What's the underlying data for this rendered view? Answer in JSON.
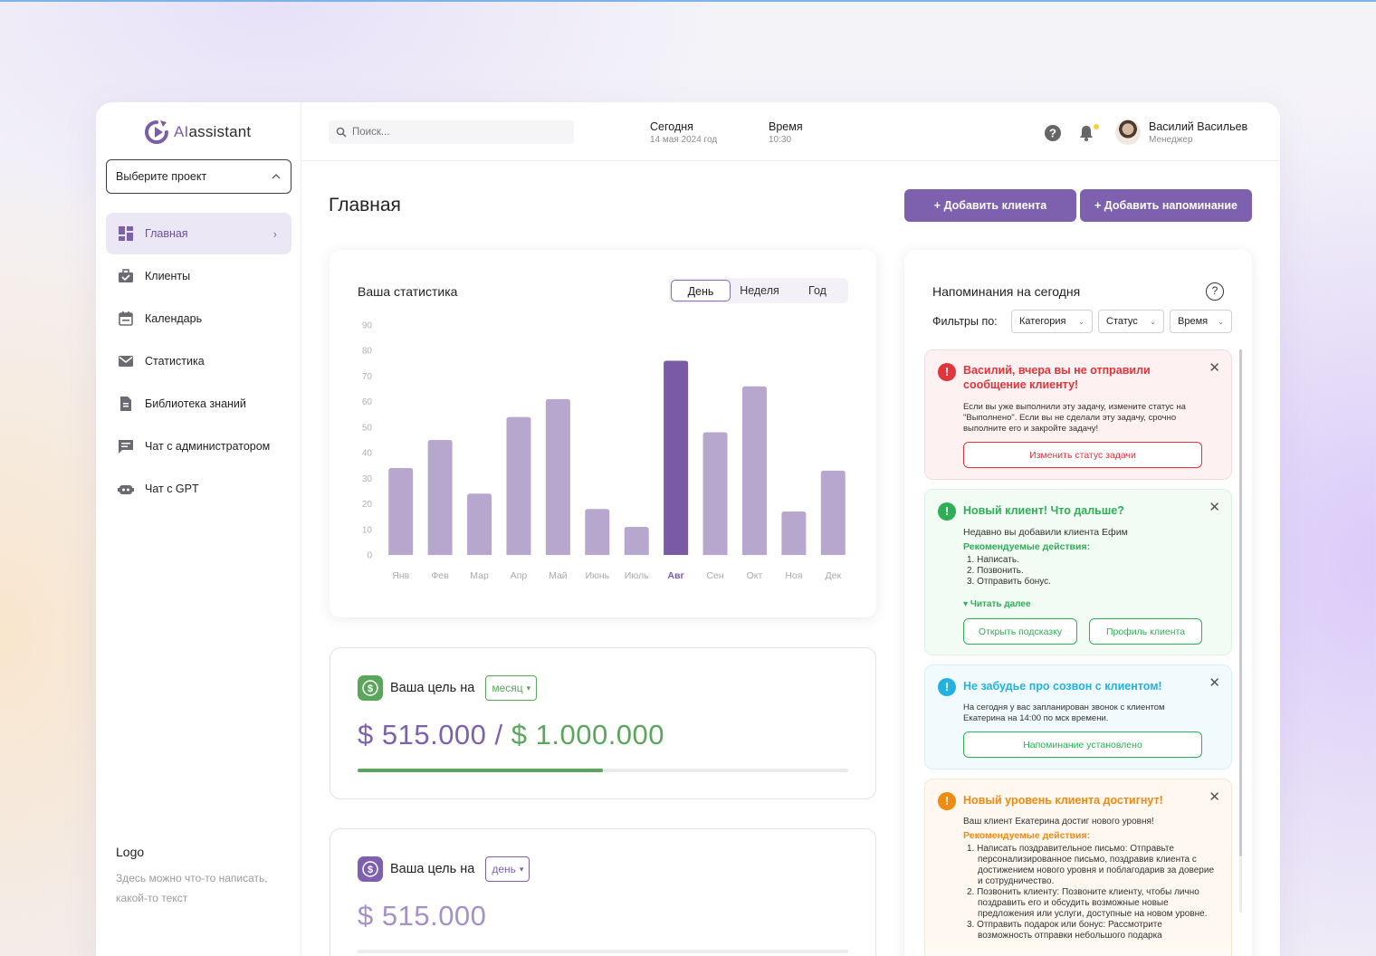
{
  "brand": {
    "name_prefix": "AI",
    "name_suffix": "assistant"
  },
  "project_select": {
    "label": "Выберите проект"
  },
  "sidebar": {
    "items": [
      {
        "label": "Главная",
        "icon": "dashboard-icon",
        "active": true
      },
      {
        "label": "Клиенты",
        "icon": "briefcase-icon"
      },
      {
        "label": "Календарь",
        "icon": "calendar-icon"
      },
      {
        "label": "Статистика",
        "icon": "mail-icon"
      },
      {
        "label": "Библиотека знаний",
        "icon": "document-icon"
      },
      {
        "label": "Чат с администратором",
        "icon": "chat-icon"
      },
      {
        "label": "Чат с GPT",
        "icon": "robot-icon"
      }
    ],
    "footer": {
      "title": "Logo",
      "text": "Здесь можно что-то написать, какой-то текст"
    }
  },
  "header": {
    "search_placeholder": "Поиск...",
    "today_label": "Сегодня",
    "today_value": "14 мая 2024 год",
    "time_label": "Время",
    "time_value": "10:30",
    "user_name": "Василий Васильев",
    "user_role": "Менеджер"
  },
  "page": {
    "title": "Главная",
    "add_client": "+ Добавить клиента",
    "add_reminder": "+ Добавить напоминание"
  },
  "stats": {
    "title": "Ваша статистика",
    "periods": [
      "День",
      "Неделя",
      "Год"
    ],
    "selected_period": "День"
  },
  "chart_data": {
    "type": "bar",
    "categories": [
      "Янв",
      "Фев",
      "Мар",
      "Апр",
      "Май",
      "Июнь",
      "Июль",
      "Авг",
      "Сен",
      "Окт",
      "Ноя",
      "Дек"
    ],
    "values": [
      34,
      45,
      24,
      54,
      61,
      18,
      11,
      76,
      48,
      66,
      17,
      33
    ],
    "highlight_index": 7,
    "ylim": [
      0,
      90
    ],
    "yticks": [
      0,
      10,
      20,
      30,
      40,
      50,
      60,
      70,
      80,
      90
    ],
    "bar_color": "#b7a7cf",
    "highlight_color": "#7a5aa6",
    "grid": false
  },
  "goal_month": {
    "label": "Ваша цель на",
    "period": "месяц",
    "current": "$ 515.000",
    "separator": " / ",
    "target": "$ 1.000.000",
    "progress": 0.5,
    "color": "#5ba55c"
  },
  "goal_day": {
    "label": "Ваша цель на",
    "period": "день",
    "current": "$ 515.000",
    "color": "#8a6cb8"
  },
  "reminders": {
    "title": "Напоминания на сегодня",
    "filters_label": "Фильтры по:",
    "filters": [
      "Категория",
      "Статус",
      "Время"
    ],
    "cards": [
      {
        "title": "Василий, вчера вы не отправили сообщение клиенту!",
        "text": "Если вы уже выполнили эту задачу, измените статус на \"Выполнено\". Если вы не сделали эту задачу, срочно выполните его и закройте задачу!",
        "button": "Изменить статус задачи",
        "color": "#e0353b"
      },
      {
        "title": "Новый клиент! Что дальше?",
        "text": "Недавно вы добавили клиента Ефим",
        "subtitle": "Рекомендуемые действия:",
        "steps": [
          "1. Написать.",
          "2. Позвонить.",
          "3. Отправить бонус."
        ],
        "more": "Читать далее",
        "buttons": [
          "Открыть подсказку",
          "Профиль клиента"
        ],
        "color": "#2eae57"
      },
      {
        "title": "Не забудье про созвон с клиентом!",
        "text": "На сегодня у вас запланирован звонок с клиентом Екатерина на 14:00 по мск времени.",
        "button": "Напоминание установлено",
        "color": "#23b2e0"
      },
      {
        "title": "Новый уровень клиента достигнут!",
        "text": "Ваш клиент Екатерина достиг нового уровня!",
        "subtitle": "Рекомендуемые действия:",
        "steps": [
          "1. Написать поздравительное письмо: Отправьте персонализированное письмо, поздравив клиента с достижением нового уровня и поблагодарив за доверие и сотрудничество.",
          "2. Позвонить клиенту: Позвоните клиенту, чтобы лично поздравить его и обсудить возможные новые предложения или услуги, доступные на новом уровне.",
          "3. Отправить подарок или бонус: Рассмотрите возможность отправки небольшого подарка"
        ],
        "color": "#ef8a12"
      }
    ]
  }
}
